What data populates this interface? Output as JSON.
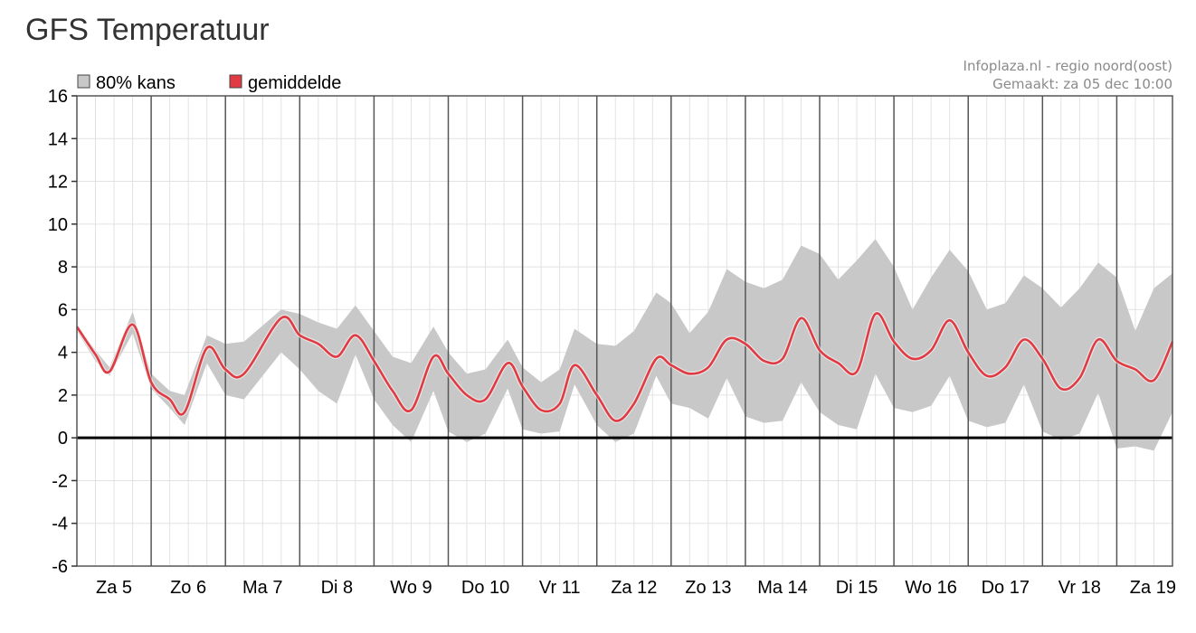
{
  "page": {
    "title": "GFS Temperatuur"
  },
  "credits": {
    "line1": "Infoplaza.nl - regio noord(oost)",
    "line2": "Gemaakt: za 05 dec 10:00"
  },
  "legend": {
    "band_label": "80% kans",
    "band_color": "#c8c8c8",
    "mean_label": "gemiddelde",
    "mean_color": "#e03b43"
  },
  "chart_data": {
    "type": "area",
    "title": "GFS Temperatuur",
    "xlabel": "",
    "ylabel": "",
    "x_unit": "days from 5 Dec 00:00",
    "xlim": [
      0,
      14.75
    ],
    "ylim": [
      -6,
      16
    ],
    "yticks": [
      -6,
      -4,
      -2,
      0,
      2,
      4,
      6,
      8,
      10,
      12,
      14,
      16
    ],
    "day_labels": [
      "Za 5",
      "Zo 6",
      "Ma 7",
      "Di 8",
      "Wo 9",
      "Do 10",
      "Vr 11",
      "Za 12",
      "Zo 13",
      "Ma 14",
      "Di 15",
      "Wo 16",
      "Do 17",
      "Vr 18",
      "Za 19"
    ],
    "grid": true,
    "legend_position": "top-left",
    "series": [
      {
        "name": "gemiddelde",
        "color": "#e03b43",
        "points": [
          [
            0.0,
            5.2
          ],
          [
            0.25,
            3.9
          ],
          [
            0.44,
            3.1
          ],
          [
            0.75,
            5.3
          ],
          [
            1.0,
            2.6
          ],
          [
            1.25,
            1.8
          ],
          [
            1.45,
            1.2
          ],
          [
            1.75,
            4.2
          ],
          [
            2.0,
            3.2
          ],
          [
            2.25,
            3.0
          ],
          [
            2.75,
            5.6
          ],
          [
            3.0,
            4.8
          ],
          [
            3.25,
            4.4
          ],
          [
            3.5,
            3.8
          ],
          [
            3.75,
            4.8
          ],
          [
            4.0,
            3.6
          ],
          [
            4.25,
            2.2
          ],
          [
            4.5,
            1.3
          ],
          [
            4.8,
            3.8
          ],
          [
            5.0,
            3.0
          ],
          [
            5.25,
            2.0
          ],
          [
            5.5,
            1.8
          ],
          [
            5.8,
            3.5
          ],
          [
            6.0,
            2.4
          ],
          [
            6.25,
            1.3
          ],
          [
            6.5,
            1.6
          ],
          [
            6.7,
            3.4
          ],
          [
            7.0,
            2.0
          ],
          [
            7.25,
            0.8
          ],
          [
            7.5,
            1.6
          ],
          [
            7.8,
            3.7
          ],
          [
            8.0,
            3.4
          ],
          [
            8.25,
            3.0
          ],
          [
            8.5,
            3.3
          ],
          [
            8.75,
            4.6
          ],
          [
            9.0,
            4.4
          ],
          [
            9.25,
            3.6
          ],
          [
            9.5,
            3.7
          ],
          [
            9.75,
            5.6
          ],
          [
            10.0,
            4.1
          ],
          [
            10.25,
            3.5
          ],
          [
            10.5,
            3.1
          ],
          [
            10.75,
            5.8
          ],
          [
            11.0,
            4.5
          ],
          [
            11.25,
            3.7
          ],
          [
            11.5,
            4.1
          ],
          [
            11.75,
            5.5
          ],
          [
            12.0,
            4.0
          ],
          [
            12.25,
            2.9
          ],
          [
            12.5,
            3.3
          ],
          [
            12.75,
            4.6
          ],
          [
            13.0,
            3.7
          ],
          [
            13.25,
            2.3
          ],
          [
            13.5,
            2.8
          ],
          [
            13.75,
            4.6
          ],
          [
            14.0,
            3.6
          ],
          [
            14.25,
            3.2
          ],
          [
            14.5,
            2.7
          ],
          [
            14.75,
            4.5
          ]
        ]
      },
      {
        "name": "80% kans",
        "color": "#c8c8c8",
        "upper": [
          [
            0.0,
            5.3
          ],
          [
            0.25,
            4.1
          ],
          [
            0.44,
            3.3
          ],
          [
            0.75,
            5.9
          ],
          [
            1.0,
            3.0
          ],
          [
            1.25,
            2.2
          ],
          [
            1.45,
            2.0
          ],
          [
            1.75,
            4.8
          ],
          [
            2.0,
            4.4
          ],
          [
            2.25,
            4.5
          ],
          [
            2.75,
            6.0
          ],
          [
            3.0,
            5.8
          ],
          [
            3.25,
            5.4
          ],
          [
            3.5,
            5.1
          ],
          [
            3.75,
            6.2
          ],
          [
            4.0,
            5.0
          ],
          [
            4.25,
            3.8
          ],
          [
            4.5,
            3.5
          ],
          [
            4.8,
            5.2
          ],
          [
            5.0,
            4.0
          ],
          [
            5.25,
            3.0
          ],
          [
            5.5,
            3.2
          ],
          [
            5.8,
            4.6
          ],
          [
            6.0,
            3.3
          ],
          [
            6.25,
            2.6
          ],
          [
            6.5,
            3.2
          ],
          [
            6.7,
            5.1
          ],
          [
            7.0,
            4.4
          ],
          [
            7.25,
            4.3
          ],
          [
            7.5,
            5.0
          ],
          [
            7.8,
            6.8
          ],
          [
            8.0,
            6.3
          ],
          [
            8.25,
            4.9
          ],
          [
            8.5,
            5.9
          ],
          [
            8.75,
            7.9
          ],
          [
            9.0,
            7.3
          ],
          [
            9.25,
            7.0
          ],
          [
            9.5,
            7.4
          ],
          [
            9.75,
            9.0
          ],
          [
            10.0,
            8.6
          ],
          [
            10.25,
            7.4
          ],
          [
            10.5,
            8.3
          ],
          [
            10.75,
            9.3
          ],
          [
            11.0,
            8.0
          ],
          [
            11.25,
            6.0
          ],
          [
            11.5,
            7.5
          ],
          [
            11.75,
            8.8
          ],
          [
            12.0,
            7.8
          ],
          [
            12.25,
            6.0
          ],
          [
            12.5,
            6.3
          ],
          [
            12.75,
            7.6
          ],
          [
            13.0,
            7.0
          ],
          [
            13.25,
            6.1
          ],
          [
            13.5,
            7.0
          ],
          [
            13.75,
            8.2
          ],
          [
            14.0,
            7.5
          ],
          [
            14.25,
            5.0
          ],
          [
            14.5,
            7.0
          ],
          [
            14.75,
            7.7
          ]
        ],
        "lower": [
          [
            0.0,
            5.0
          ],
          [
            0.25,
            3.6
          ],
          [
            0.44,
            2.9
          ],
          [
            0.75,
            4.9
          ],
          [
            1.0,
            2.3
          ],
          [
            1.25,
            1.4
          ],
          [
            1.45,
            0.6
          ],
          [
            1.75,
            3.5
          ],
          [
            2.0,
            2.0
          ],
          [
            2.25,
            1.8
          ],
          [
            2.75,
            4.0
          ],
          [
            3.0,
            3.2
          ],
          [
            3.25,
            2.2
          ],
          [
            3.5,
            1.6
          ],
          [
            3.75,
            3.9
          ],
          [
            4.0,
            1.8
          ],
          [
            4.25,
            0.6
          ],
          [
            4.5,
            -0.2
          ],
          [
            4.8,
            2.2
          ],
          [
            5.0,
            0.3
          ],
          [
            5.25,
            -0.2
          ],
          [
            5.5,
            0.2
          ],
          [
            5.8,
            2.3
          ],
          [
            6.0,
            0.4
          ],
          [
            6.25,
            0.2
          ],
          [
            6.5,
            0.3
          ],
          [
            6.7,
            2.5
          ],
          [
            7.0,
            0.6
          ],
          [
            7.25,
            -0.2
          ],
          [
            7.5,
            0.2
          ],
          [
            7.8,
            2.9
          ],
          [
            8.0,
            1.6
          ],
          [
            8.25,
            1.4
          ],
          [
            8.5,
            0.9
          ],
          [
            8.75,
            2.8
          ],
          [
            9.0,
            1.0
          ],
          [
            9.25,
            0.7
          ],
          [
            9.5,
            0.8
          ],
          [
            9.75,
            2.6
          ],
          [
            10.0,
            1.2
          ],
          [
            10.25,
            0.6
          ],
          [
            10.5,
            0.4
          ],
          [
            10.75,
            3.0
          ],
          [
            11.0,
            1.4
          ],
          [
            11.25,
            1.2
          ],
          [
            11.5,
            1.5
          ],
          [
            11.75,
            2.9
          ],
          [
            12.0,
            0.8
          ],
          [
            12.25,
            0.5
          ],
          [
            12.5,
            0.7
          ],
          [
            12.75,
            2.5
          ],
          [
            13.0,
            0.3
          ],
          [
            13.25,
            -0.1
          ],
          [
            13.5,
            0.2
          ],
          [
            13.75,
            2.1
          ],
          [
            14.0,
            -0.5
          ],
          [
            14.25,
            -0.4
          ],
          [
            14.5,
            -0.6
          ],
          [
            14.75,
            1.2
          ]
        ]
      }
    ]
  }
}
